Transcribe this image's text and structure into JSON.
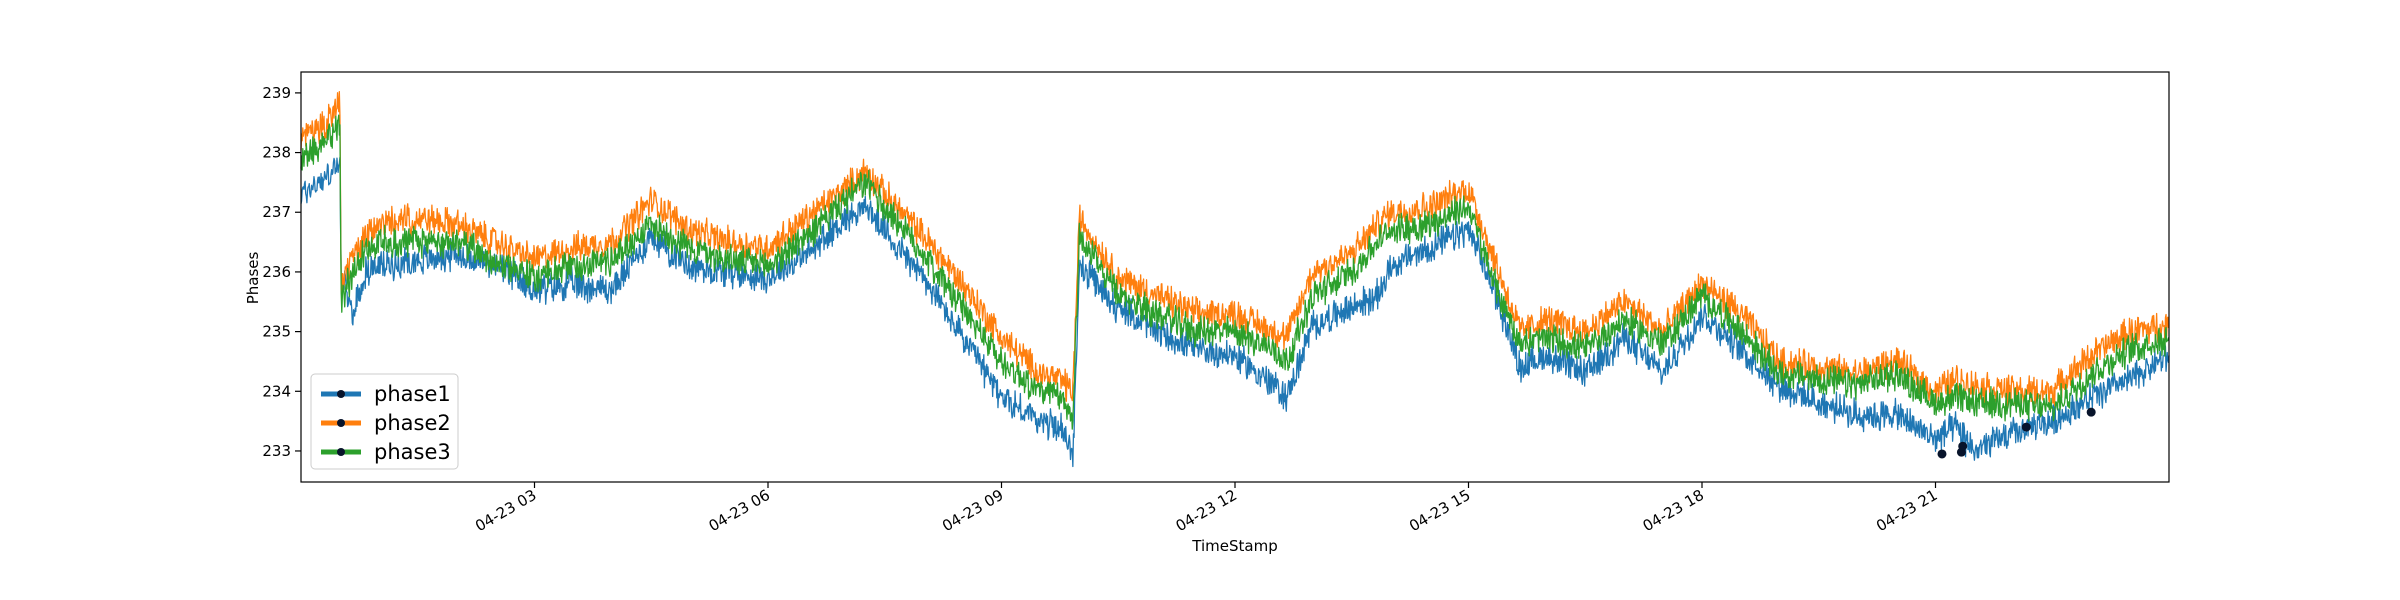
{
  "chart_data": {
    "type": "line",
    "title": "",
    "xlabel": "TimeStamp",
    "ylabel": "Phases",
    "xlim": [
      "2024-04-23T00:00",
      "2024-04-24T00:00"
    ],
    "ylim": [
      232.48,
      239.35
    ],
    "x_ticks": [
      {
        "value": "2024-04-23T03:00",
        "label": "04-23 03"
      },
      {
        "value": "2024-04-23T06:00",
        "label": "04-23 06"
      },
      {
        "value": "2024-04-23T09:00",
        "label": "04-23 09"
      },
      {
        "value": "2024-04-23T12:00",
        "label": "04-23 12"
      },
      {
        "value": "2024-04-23T15:00",
        "label": "04-23 15"
      },
      {
        "value": "2024-04-23T18:00",
        "label": "04-23 18"
      },
      {
        "value": "2024-04-23T21:00",
        "label": "04-23 21"
      }
    ],
    "y_ticks": [
      233,
      234,
      235,
      236,
      237,
      238,
      239
    ],
    "grid": false,
    "legend": {
      "position": "lower-left"
    },
    "x": [
      "00:00",
      "00:20",
      "00:30",
      "00:31",
      "00:40",
      "00:50",
      "01:00",
      "01:30",
      "02:00",
      "02:30",
      "03:00",
      "03:30",
      "04:00",
      "04:30",
      "05:00",
      "05:30",
      "06:00",
      "06:30",
      "07:00",
      "07:15",
      "07:30",
      "08:00",
      "08:30",
      "09:00",
      "09:30",
      "09:45",
      "09:50",
      "09:55",
      "10:00",
      "10:30",
      "11:00",
      "11:30",
      "12:00",
      "12:30",
      "12:40",
      "13:00",
      "13:30",
      "13:50",
      "14:00",
      "14:30",
      "15:00",
      "15:20",
      "15:40",
      "16:00",
      "16:30",
      "17:00",
      "17:30",
      "18:00",
      "18:30",
      "19:00",
      "19:30",
      "20:00",
      "20:30",
      "21:00",
      "21:15",
      "21:30",
      "22:00",
      "22:30",
      "23:00",
      "23:30",
      "24:00"
    ],
    "series": [
      {
        "name": "phase1",
        "color": "#1f77b4",
        "values": [
          237.3,
          237.6,
          237.8,
          235.9,
          235.3,
          236.0,
          236.1,
          236.2,
          236.3,
          236.1,
          235.7,
          235.8,
          235.7,
          236.6,
          236.1,
          236.0,
          235.9,
          236.3,
          236.9,
          237.1,
          236.7,
          235.9,
          234.9,
          233.9,
          233.5,
          233.4,
          233.2,
          232.9,
          236.1,
          235.4,
          235.0,
          234.7,
          234.6,
          234.1,
          233.9,
          235.1,
          235.4,
          235.6,
          236.1,
          236.4,
          236.7,
          235.7,
          234.4,
          234.6,
          234.3,
          234.9,
          234.3,
          235.3,
          234.7,
          234.1,
          233.8,
          233.6,
          233.6,
          233.2,
          233.4,
          233.0,
          233.3,
          233.5,
          233.9,
          234.2,
          234.6
        ]
      },
      {
        "name": "phase2",
        "color": "#ff7f0e",
        "values": [
          238.2,
          238.5,
          238.8,
          235.8,
          236.2,
          236.6,
          236.8,
          236.9,
          236.8,
          236.5,
          236.2,
          236.4,
          236.5,
          237.2,
          236.7,
          236.5,
          236.4,
          236.9,
          237.4,
          237.7,
          237.3,
          236.6,
          235.8,
          234.9,
          234.3,
          234.2,
          234.1,
          234.0,
          236.9,
          235.9,
          235.6,
          235.3,
          235.3,
          235.0,
          234.9,
          236.0,
          236.3,
          236.8,
          237.0,
          237.1,
          237.4,
          236.2,
          235.0,
          235.2,
          235.0,
          235.5,
          235.0,
          235.8,
          235.3,
          234.5,
          234.4,
          234.3,
          234.5,
          234.0,
          234.2,
          234.1,
          234.0,
          234.0,
          234.6,
          235.0,
          235.1
        ]
      },
      {
        "name": "phase3",
        "color": "#2ca02c",
        "values": [
          237.9,
          238.2,
          238.5,
          235.5,
          236.0,
          236.4,
          236.5,
          236.5,
          236.5,
          236.2,
          235.9,
          236.1,
          236.2,
          236.8,
          236.4,
          236.2,
          236.1,
          236.6,
          237.2,
          237.5,
          237.1,
          236.3,
          235.4,
          234.5,
          234.0,
          233.9,
          233.7,
          233.6,
          236.6,
          235.6,
          235.3,
          235.0,
          235.0,
          234.7,
          234.5,
          235.6,
          236.0,
          236.5,
          236.7,
          236.8,
          237.1,
          235.8,
          234.8,
          234.9,
          234.7,
          235.2,
          234.8,
          235.6,
          235.0,
          234.3,
          234.2,
          234.1,
          234.3,
          233.8,
          233.9,
          233.8,
          233.8,
          233.7,
          234.3,
          234.7,
          234.9
        ]
      }
    ],
    "markers": [
      {
        "x": "21:05",
        "y": 232.95
      },
      {
        "x": "21:20",
        "y": 232.98
      },
      {
        "x": "21:21",
        "y": 233.08
      },
      {
        "x": "22:10",
        "y": 233.4
      },
      {
        "x": "23:00",
        "y": 233.65
      }
    ]
  }
}
